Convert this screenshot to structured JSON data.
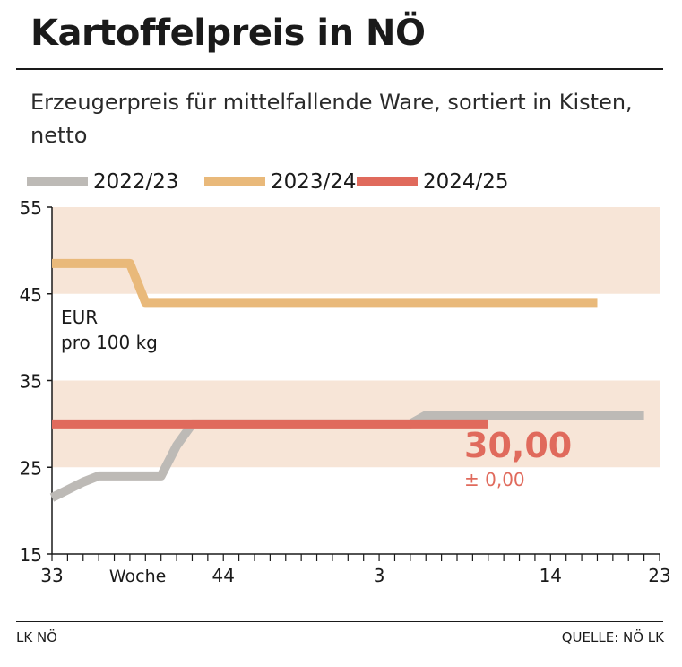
{
  "title": "Kartoffelpreis in NÖ",
  "subtitle": "Erzeugerpreis für mittelfallende Ware, sortiert in Kisten, netto",
  "unit_label": [
    "EUR",
    "pro 100 kg"
  ],
  "x_axis_label": "Woche",
  "current_value": "30,00",
  "current_change": "± 0,00",
  "footer_left": "LK NÖ",
  "footer_right": "QUELLE: NÖ LK",
  "colors": {
    "2022/23": "#bdbab6",
    "2023/24": "#e9b97a",
    "2024/25": "#e06a5c",
    "band": "#f7e5d7"
  },
  "chart_data": {
    "type": "line",
    "title": "Kartoffelpreis in NÖ",
    "ylabel": "EUR pro 100 kg",
    "xlabel": "Woche",
    "ylim": [
      15,
      55
    ],
    "yticks": [
      15,
      25,
      35,
      45,
      55
    ],
    "x_ticks_labeled": [
      "33",
      "44",
      "3",
      "14",
      "23"
    ],
    "bands": [
      [
        25,
        35
      ],
      [
        45,
        55
      ]
    ],
    "legend_position": "top",
    "series": [
      {
        "name": "2022/23",
        "points": [
          [
            0,
            21.5
          ],
          [
            2,
            23.3
          ],
          [
            3,
            24
          ],
          [
            7,
            24
          ],
          [
            8,
            27.5
          ],
          [
            9,
            30
          ],
          [
            23,
            30
          ],
          [
            24,
            31
          ],
          [
            38,
            31
          ]
        ]
      },
      {
        "name": "2023/24",
        "points": [
          [
            0,
            48.5
          ],
          [
            5,
            48.5
          ],
          [
            6,
            44
          ],
          [
            35,
            44
          ]
        ]
      },
      {
        "name": "2024/25",
        "points": [
          [
            0,
            30
          ],
          [
            28,
            30
          ]
        ]
      }
    ]
  }
}
